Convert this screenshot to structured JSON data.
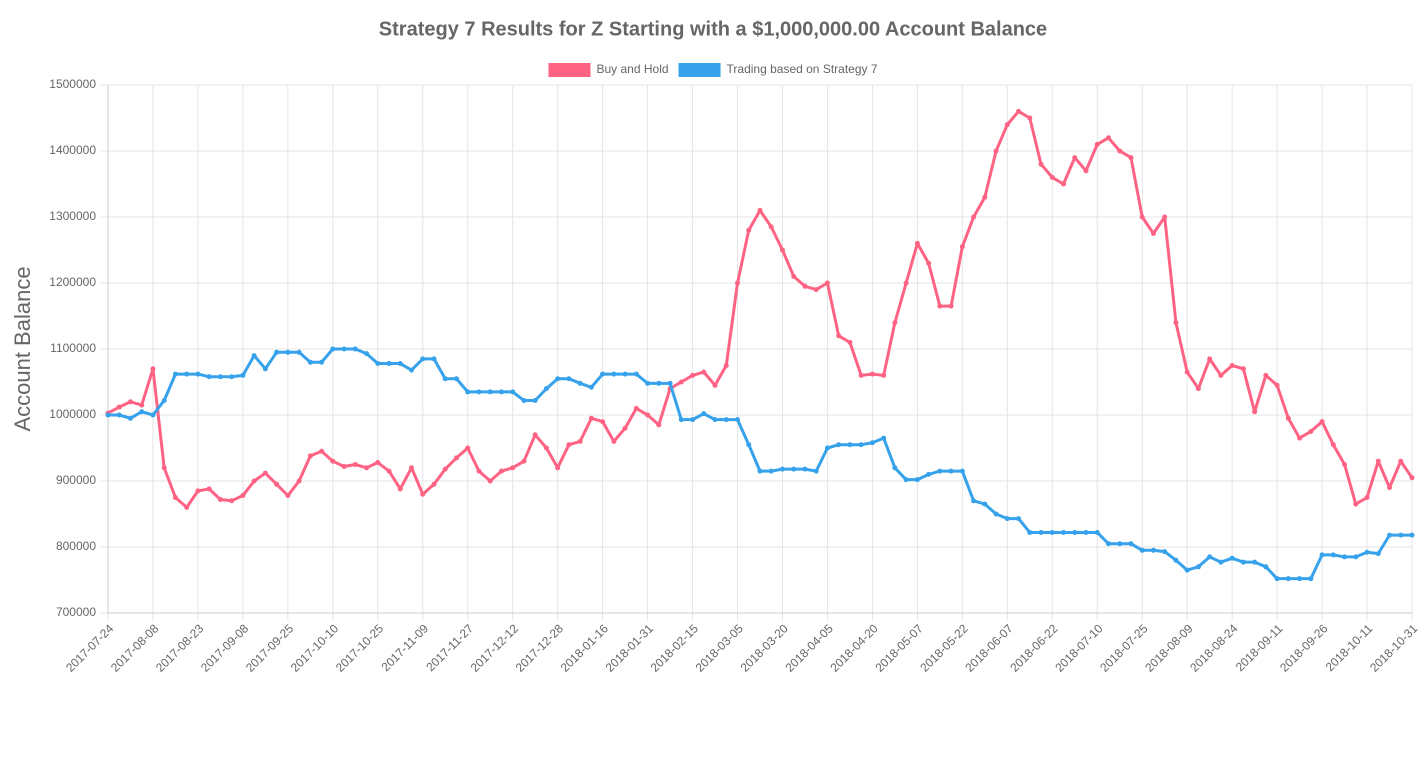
{
  "chart_data": {
    "type": "line",
    "title": "Strategy 7 Results for Z Starting with a $1,000,000.00 Account Balance",
    "ylabel": "Account Balance",
    "legend": "top",
    "grid": true,
    "ylim": [
      700000,
      1500000
    ],
    "yticks": [
      700000,
      800000,
      900000,
      1000000,
      1100000,
      1200000,
      1300000,
      1400000,
      1500000
    ],
    "categories": [
      "2017-07-24",
      null,
      null,
      null,
      "2017-08-08",
      null,
      null,
      null,
      "2017-08-23",
      null,
      null,
      null,
      "2017-09-08",
      null,
      null,
      null,
      "2017-09-25",
      null,
      null,
      null,
      "2017-10-10",
      null,
      null,
      null,
      "2017-10-25",
      null,
      null,
      null,
      "2017-11-09",
      null,
      null,
      null,
      "2017-11-27",
      null,
      null,
      null,
      "2017-12-12",
      null,
      null,
      null,
      "2017-12-28",
      null,
      null,
      null,
      "2018-01-16",
      null,
      null,
      null,
      "2018-01-31",
      null,
      null,
      null,
      "2018-02-15",
      null,
      null,
      null,
      "2018-03-05",
      null,
      null,
      null,
      "2018-03-20",
      null,
      null,
      null,
      "2018-04-05",
      null,
      null,
      null,
      "2018-04-20",
      null,
      null,
      null,
      "2018-05-07",
      null,
      null,
      null,
      "2018-05-22",
      null,
      null,
      null,
      "2018-06-07",
      null,
      null,
      null,
      "2018-06-22",
      null,
      null,
      null,
      "2018-07-10",
      null,
      null,
      null,
      "2018-07-25",
      null,
      null,
      null,
      "2018-08-09",
      null,
      null,
      null,
      "2018-08-24",
      null,
      null,
      null,
      "2018-09-11",
      null,
      null,
      null,
      "2018-09-26",
      null,
      null,
      null,
      "2018-10-11",
      null,
      null,
      null,
      "2018-10-31"
    ],
    "series": [
      {
        "name": "Buy and Hold",
        "color": "#ff6384",
        "values": [
          1003000,
          1012000,
          1020000,
          1015000,
          1070000,
          920000,
          875000,
          860000,
          885000,
          888000,
          872000,
          870000,
          878000,
          900000,
          912000,
          895000,
          878000,
          900000,
          938000,
          945000,
          930000,
          922000,
          925000,
          920000,
          928000,
          915000,
          888000,
          920000,
          880000,
          895000,
          918000,
          935000,
          950000,
          915000,
          900000,
          915000,
          920000,
          930000,
          970000,
          950000,
          920000,
          955000,
          960000,
          995000,
          990000,
          960000,
          980000,
          1010000,
          1000000,
          985000,
          1040000,
          1050000,
          1060000,
          1065000,
          1045000,
          1075000,
          1200000,
          1280000,
          1310000,
          1285000,
          1250000,
          1210000,
          1195000,
          1190000,
          1200000,
          1120000,
          1110000,
          1060000,
          1062000,
          1060000,
          1140000,
          1200000,
          1260000,
          1230000,
          1165000,
          1165000,
          1255000,
          1300000,
          1330000,
          1400000,
          1440000,
          1460000,
          1450000,
          1380000,
          1360000,
          1350000,
          1390000,
          1370000,
          1410000,
          1420000,
          1400000,
          1390000,
          1300000,
          1275000,
          1300000,
          1140000,
          1065000,
          1040000,
          1085000,
          1060000,
          1075000,
          1070000,
          1005000,
          1060000,
          1045000,
          995000,
          965000,
          975000,
          990000,
          955000,
          925000,
          865000,
          875000,
          930000,
          890000,
          930000,
          905000
        ]
      },
      {
        "name": "Trading based on Strategy 7",
        "color": "#36a2eb",
        "values": [
          1000000,
          1000000,
          995000,
          1005000,
          1000000,
          1022000,
          1062000,
          1062000,
          1062000,
          1058000,
          1058000,
          1058000,
          1060000,
          1090000,
          1070000,
          1095000,
          1095000,
          1095000,
          1080000,
          1080000,
          1100000,
          1100000,
          1100000,
          1093000,
          1078000,
          1078000,
          1078000,
          1068000,
          1085000,
          1085000,
          1055000,
          1055000,
          1035000,
          1035000,
          1035000,
          1035000,
          1035000,
          1022000,
          1022000,
          1040000,
          1055000,
          1055000,
          1048000,
          1042000,
          1062000,
          1062000,
          1062000,
          1062000,
          1048000,
          1048000,
          1048000,
          993000,
          993000,
          1002000,
          993000,
          993000,
          993000,
          955000,
          915000,
          915000,
          918000,
          918000,
          918000,
          915000,
          950000,
          955000,
          955000,
          955000,
          958000,
          965000,
          920000,
          902000,
          902000,
          910000,
          915000,
          915000,
          915000,
          870000,
          865000,
          850000,
          843000,
          843000,
          822000,
          822000,
          822000,
          822000,
          822000,
          822000,
          822000,
          805000,
          805000,
          805000,
          795000,
          795000,
          793000,
          780000,
          765000,
          770000,
          785000,
          777000,
          783000,
          777000,
          777000,
          770000,
          752000,
          752000,
          752000,
          752000,
          788000,
          788000,
          785000,
          785000,
          792000,
          790000,
          818000,
          818000,
          818000
        ]
      }
    ]
  }
}
